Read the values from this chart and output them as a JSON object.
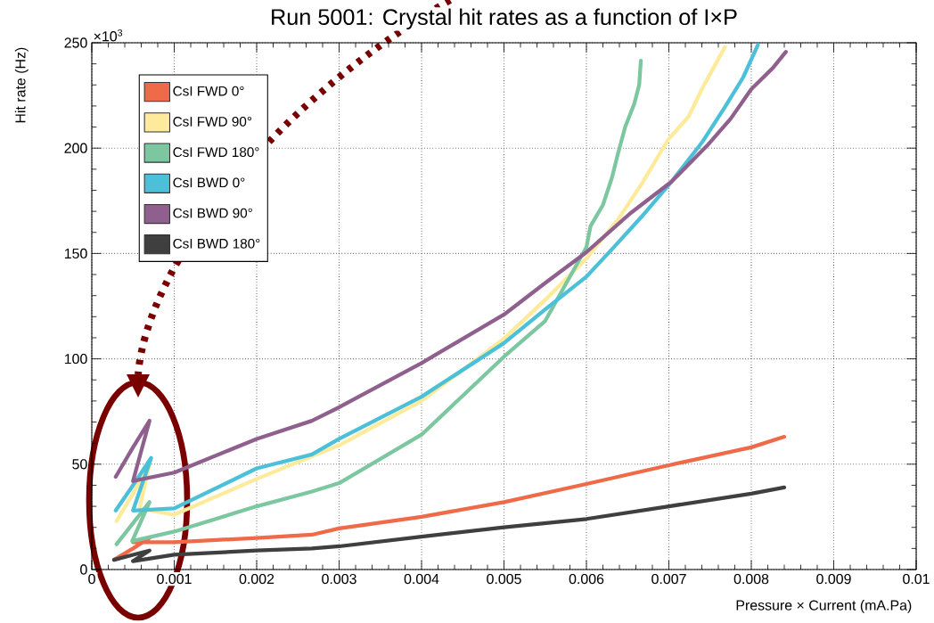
{
  "chart_data": {
    "type": "line",
    "title": "Run 5001: Crystal hit rates as a function of I×P",
    "xlabel": "Pressure × Current (mA.Pa)",
    "ylabel": "Hit rate (Hz)",
    "annotations": [
      "×10$^{3}$"
    ],
    "xlim": [
      0,
      0.01
    ],
    "ylim": [
      0,
      250
    ],
    "xticks": [
      0,
      0.001,
      0.002,
      0.003,
      0.004,
      0.005,
      0.006,
      0.007,
      0.008,
      0.009,
      0.01
    ],
    "yticks": [
      0,
      50,
      100,
      150,
      200,
      250
    ],
    "grid": true,
    "legend": "top left",
    "line_style": "solid",
    "series": [
      {
        "name": "CsI FWD 0°",
        "color": "#ee6a48",
        "x": [
          0.00027,
          0.0005,
          0.0007,
          0.0005,
          0.001,
          0.002,
          0.00267,
          0.003,
          0.004,
          0.005,
          0.006,
          0.007,
          0.008,
          0.0084
        ],
        "values": [
          4.6,
          10,
          15,
          13,
          13,
          15,
          16.5,
          19.5,
          25,
          32,
          40.6,
          49.5,
          58,
          63
        ]
      },
      {
        "name": "CsI FWD 90°",
        "color": "#fdeb9b",
        "x": [
          0.0003,
          0.0005,
          0.0007,
          0.00058,
          0.001,
          0.002,
          0.003,
          0.004,
          0.005,
          0.0055,
          0.006,
          0.00638,
          0.00667,
          0.00699,
          0.00724,
          0.0074,
          0.00754,
          0.00768
        ],
        "values": [
          23,
          36,
          50,
          29,
          26,
          43,
          59,
          80,
          109.6,
          128,
          147.6,
          166,
          183,
          204,
          215,
          228,
          238,
          248
        ]
      },
      {
        "name": "CsI FWD 180°",
        "color": "#7cc7a0",
        "x": [
          0.0003,
          0.0005,
          0.0007,
          0.00049,
          0.001,
          0.002,
          0.00267,
          0.003,
          0.004,
          0.005,
          0.0055,
          0.006,
          0.00605,
          0.0062,
          0.00631,
          0.00638,
          0.00647,
          0.00658,
          0.00664,
          0.00666
        ],
        "values": [
          12,
          22,
          32,
          13.5,
          18,
          30,
          37,
          41,
          64,
          101,
          118,
          153,
          163,
          173,
          186,
          197,
          210,
          221,
          230,
          241.5
        ]
      },
      {
        "name": "CsI BWD 0°",
        "color": "#4bc0d8",
        "x": [
          0.00029,
          0.0005,
          0.00072,
          0.0005,
          0.001,
          0.002,
          0.00267,
          0.003,
          0.004,
          0.005,
          0.0055,
          0.006,
          0.00631,
          0.00667,
          0.00703,
          0.0074,
          0.00768,
          0.0079,
          0.00808
        ],
        "values": [
          28,
          40,
          53,
          28,
          29,
          48,
          54.6,
          62,
          82,
          107.5,
          123.5,
          139,
          152,
          167.5,
          184,
          202.6,
          219.5,
          233.5,
          249
        ]
      },
      {
        "name": "CsI BWD 90°",
        "color": "#8f5f8d",
        "x": [
          0.00029,
          0.0005,
          0.0007,
          0.0005,
          0.001,
          0.002,
          0.00267,
          0.003,
          0.004,
          0.005,
          0.0055,
          0.006,
          0.00653,
          0.00703,
          0.00746,
          0.00775,
          0.008,
          0.00826,
          0.00842
        ],
        "values": [
          44,
          58,
          70.6,
          42,
          46,
          62,
          70.6,
          77,
          98,
          121,
          136,
          150.6,
          169,
          184,
          201,
          214,
          228,
          238,
          245.7
        ]
      },
      {
        "name": "CsI BWD 180°",
        "color": "#3f3f3f",
        "x": [
          0.00027,
          0.0005,
          0.0007,
          0.0005,
          0.001,
          0.002,
          0.00267,
          0.003,
          0.004,
          0.005,
          0.006,
          0.007,
          0.008,
          0.0084
        ],
        "values": [
          4.6,
          7,
          9,
          4,
          7,
          9,
          10,
          11,
          15.6,
          20,
          24,
          30,
          36,
          39
        ]
      }
    ]
  }
}
